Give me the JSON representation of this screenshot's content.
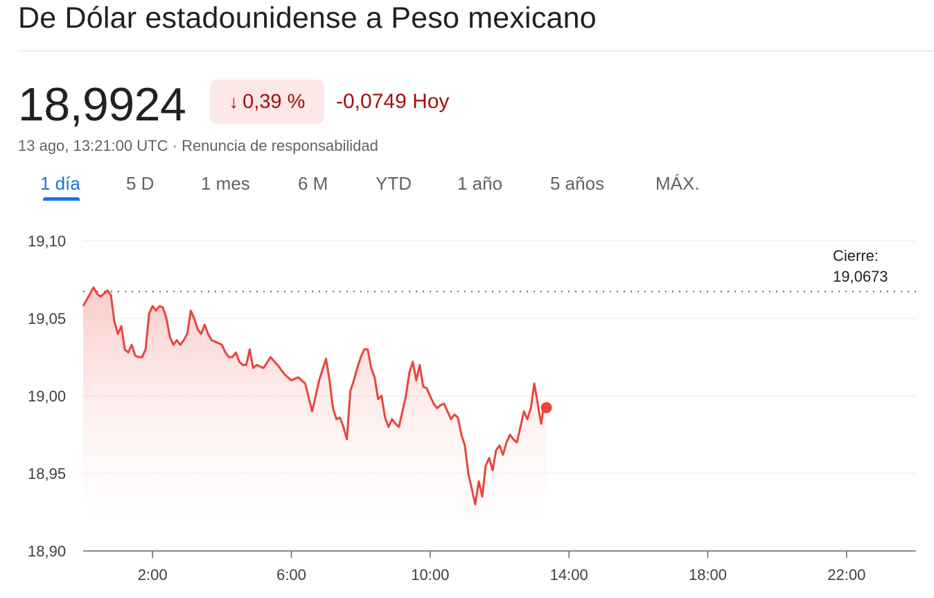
{
  "header": {
    "title": "De Dólar estadounidense a Peso mexicano"
  },
  "quote": {
    "price": "18,9924",
    "percent_change": "0,39 %",
    "abs_change": "-0,0749 Hoy",
    "timestamp": "13 ago, 13:21:00 UTC",
    "separator": "·",
    "disclaimer": "Renuncia de responsabilidad"
  },
  "tabs": [
    {
      "label": "1 día",
      "active": true
    },
    {
      "label": "5 D",
      "active": false
    },
    {
      "label": "1 mes",
      "active": false
    },
    {
      "label": "6 M",
      "active": false
    },
    {
      "label": "YTD",
      "active": false
    },
    {
      "label": "1 año",
      "active": false
    },
    {
      "label": "5 años",
      "active": false
    },
    {
      "label": "MÁX.",
      "active": false
    }
  ],
  "colors": {
    "negative": "#d93025",
    "negative_text": "#a50e0e",
    "badge_bg": "#fce8e6",
    "accent": "#1a73e8",
    "line": "#e8453c"
  },
  "icons": {
    "change_direction": "arrow-down-icon"
  },
  "chart_data": {
    "type": "line",
    "ylim": [
      18.9,
      19.1
    ],
    "xlim": [
      0.0,
      24.0
    ],
    "y_ticks": [
      19.1,
      19.05,
      19.0,
      18.95,
      18.9
    ],
    "y_tick_labels": [
      "19,10",
      "19,05",
      "19,00",
      "18,95",
      "18,90"
    ],
    "x_ticks": [
      2,
      6,
      10,
      14,
      18,
      22
    ],
    "x_tick_labels": [
      "2:00",
      "6:00",
      "10:00",
      "14:00",
      "18:00",
      "22:00"
    ],
    "previous_close": 19.0673,
    "close_label_title": "Cierre:",
    "close_label_value": "19,0673",
    "grid": true,
    "last_point": {
      "x": 13.35,
      "y": 18.9924
    },
    "series": [
      {
        "x": [
          0.0,
          0.1,
          0.2,
          0.3,
          0.4,
          0.5,
          0.6,
          0.7,
          0.8,
          0.9,
          1.0,
          1.1,
          1.2,
          1.3,
          1.4,
          1.5,
          1.6,
          1.7,
          1.8,
          1.9,
          2.0,
          2.1,
          2.2,
          2.3,
          2.4,
          2.5,
          2.6,
          2.7,
          2.8,
          2.9,
          3.0,
          3.1,
          3.2,
          3.3,
          3.4,
          3.5,
          3.6,
          3.7,
          3.8,
          3.9,
          4.0,
          4.1,
          4.2,
          4.3,
          4.4,
          4.5,
          4.6,
          4.7,
          4.8,
          4.9,
          5.0,
          5.2,
          5.4,
          5.6,
          5.8,
          6.0,
          6.2,
          6.4,
          6.6,
          6.8,
          7.0,
          7.1,
          7.2,
          7.3,
          7.4,
          7.5,
          7.6,
          7.7,
          7.8,
          7.9,
          8.0,
          8.1,
          8.2,
          8.3,
          8.4,
          8.5,
          8.6,
          8.7,
          8.8,
          8.9,
          9.0,
          9.1,
          9.2,
          9.3,
          9.4,
          9.5,
          9.6,
          9.7,
          9.8,
          9.9,
          10.0,
          10.1,
          10.2,
          10.3,
          10.4,
          10.5,
          10.6,
          10.7,
          10.8,
          10.9,
          11.0,
          11.1,
          11.2,
          11.3,
          11.4,
          11.5,
          11.6,
          11.7,
          11.8,
          11.9,
          12.0,
          12.1,
          12.2,
          12.3,
          12.4,
          12.5,
          12.6,
          12.7,
          12.8,
          12.9,
          13.0,
          13.1,
          13.15,
          13.2,
          13.25,
          13.3,
          13.35
        ],
        "y": [
          19.058,
          19.062,
          19.066,
          19.07,
          19.066,
          19.064,
          19.066,
          19.068,
          19.065,
          19.048,
          19.04,
          19.045,
          19.03,
          19.028,
          19.033,
          19.026,
          19.025,
          19.025,
          19.03,
          19.053,
          19.058,
          19.055,
          19.058,
          19.057,
          19.05,
          19.038,
          19.033,
          19.036,
          19.033,
          19.036,
          19.04,
          19.055,
          19.05,
          19.043,
          19.04,
          19.046,
          19.04,
          19.036,
          19.035,
          19.034,
          19.033,
          19.028,
          19.025,
          19.025,
          19.028,
          19.022,
          19.02,
          19.02,
          19.03,
          19.018,
          19.02,
          19.018,
          19.025,
          19.02,
          19.014,
          19.01,
          19.012,
          19.008,
          18.99,
          19.01,
          19.024,
          19.01,
          18.992,
          18.985,
          18.986,
          18.98,
          18.972,
          19.003,
          19.01,
          19.018,
          19.025,
          19.03,
          19.03,
          19.018,
          19.012,
          18.998,
          19.0,
          18.986,
          18.98,
          18.985,
          18.982,
          18.98,
          18.99,
          19.0,
          19.015,
          19.022,
          19.01,
          19.02,
          19.006,
          19.005,
          19.0,
          18.995,
          18.992,
          18.994,
          18.995,
          18.99,
          18.985,
          18.988,
          18.986,
          18.975,
          18.968,
          18.95,
          18.94,
          18.93,
          18.945,
          18.935,
          18.955,
          18.96,
          18.952,
          18.965,
          18.968,
          18.962,
          18.97,
          18.975,
          18.972,
          18.97,
          18.98,
          18.99,
          18.985,
          18.992,
          19.008,
          18.995,
          18.988,
          18.982,
          18.99,
          18.992,
          18.9924
        ]
      }
    ]
  }
}
